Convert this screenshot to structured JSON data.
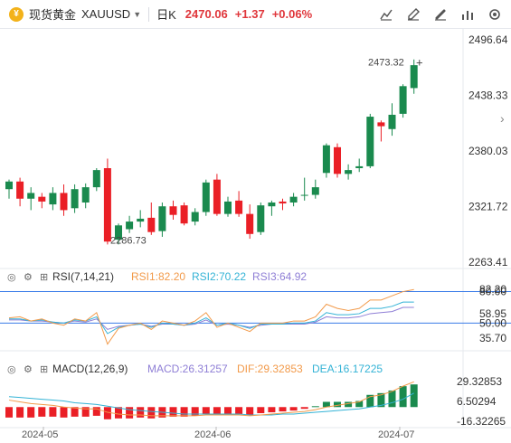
{
  "header": {
    "name": "现货黄金",
    "symbol": "XAUUSD",
    "period": "日K",
    "price": "2470.06",
    "change": "+1.37",
    "change_pct": "+0.06%"
  },
  "price_axis": [
    "2496.64",
    "2438.33",
    "2380.03",
    "2321.72",
    "2263.41"
  ],
  "price_annotations": {
    "high": "2473.32",
    "low": "2286.73"
  },
  "rsi": {
    "title": "RSI(7,14,21)",
    "rsi1": "RSI1:82.20",
    "rsi2": "RSI2:70.22",
    "rsi3": "RSI3:64.92",
    "axis": [
      "80.00",
      "82.20",
      "58.95",
      "50.00",
      "35.70"
    ]
  },
  "macd": {
    "title": "MACD(12,26,9)",
    "macd": "MACD:26.31257",
    "dif": "DIF:29.32853",
    "dea": "DEA:16.17225",
    "axis": [
      "29.32853",
      "6.50294",
      "-16.32265"
    ]
  },
  "date_axis": [
    "2024-05",
    "2024-06",
    "2024-07"
  ],
  "colors": {
    "up": "#1a8a4e",
    "down": "#ea1f26",
    "accent": "#e0363b",
    "rsi1": "#f29a4a",
    "rsi2": "#34b3d6",
    "rsi3": "#8f7fd6",
    "ref": "#3a7be8"
  },
  "icons": [
    "gold-coin-icon",
    "chevron-down-icon",
    "drawing-icon",
    "pencil-icon",
    "brush-icon",
    "indicator-icon",
    "settings-icon",
    "chevron-right-icon"
  ],
  "chart_data": {
    "type": "candlestick",
    "candles": [
      {
        "o": 2340,
        "h": 2350,
        "l": 2330,
        "c": 2348
      },
      {
        "o": 2348,
        "h": 2352,
        "l": 2322,
        "c": 2330
      },
      {
        "o": 2330,
        "h": 2342,
        "l": 2318,
        "c": 2336
      },
      {
        "o": 2332,
        "h": 2336,
        "l": 2320,
        "c": 2327
      },
      {
        "o": 2324,
        "h": 2342,
        "l": 2318,
        "c": 2336
      },
      {
        "o": 2336,
        "h": 2345,
        "l": 2312,
        "c": 2318
      },
      {
        "o": 2320,
        "h": 2345,
        "l": 2315,
        "c": 2340
      },
      {
        "o": 2326,
        "h": 2346,
        "l": 2320,
        "c": 2342
      },
      {
        "o": 2342,
        "h": 2362,
        "l": 2338,
        "c": 2360
      },
      {
        "o": 2362,
        "h": 2372,
        "l": 2282,
        "c": 2285
      },
      {
        "o": 2287,
        "h": 2304,
        "l": 2282,
        "c": 2302
      },
      {
        "o": 2298,
        "h": 2312,
        "l": 2294,
        "c": 2306
      },
      {
        "o": 2306,
        "h": 2318,
        "l": 2300,
        "c": 2309
      },
      {
        "o": 2310,
        "h": 2326,
        "l": 2292,
        "c": 2295
      },
      {
        "o": 2296,
        "h": 2326,
        "l": 2290,
        "c": 2322
      },
      {
        "o": 2322,
        "h": 2328,
        "l": 2308,
        "c": 2313
      },
      {
        "o": 2323,
        "h": 2326,
        "l": 2302,
        "c": 2304
      },
      {
        "o": 2306,
        "h": 2320,
        "l": 2302,
        "c": 2316
      },
      {
        "o": 2316,
        "h": 2350,
        "l": 2312,
        "c": 2347
      },
      {
        "o": 2350,
        "h": 2356,
        "l": 2312,
        "c": 2314
      },
      {
        "o": 2314,
        "h": 2332,
        "l": 2311,
        "c": 2327
      },
      {
        "o": 2328,
        "h": 2338,
        "l": 2311,
        "c": 2314
      },
      {
        "o": 2314,
        "h": 2324,
        "l": 2288,
        "c": 2293
      },
      {
        "o": 2295,
        "h": 2326,
        "l": 2292,
        "c": 2323
      },
      {
        "o": 2322,
        "h": 2328,
        "l": 2312,
        "c": 2326
      },
      {
        "o": 2327,
        "h": 2330,
        "l": 2318,
        "c": 2325
      },
      {
        "o": 2326,
        "h": 2336,
        "l": 2322,
        "c": 2332
      },
      {
        "o": 2334,
        "h": 2352,
        "l": 2328,
        "c": 2334
      },
      {
        "o": 2334,
        "h": 2350,
        "l": 2330,
        "c": 2342
      },
      {
        "o": 2357,
        "h": 2388,
        "l": 2352,
        "c": 2386
      },
      {
        "o": 2384,
        "h": 2388,
        "l": 2352,
        "c": 2356
      },
      {
        "o": 2356,
        "h": 2366,
        "l": 2350,
        "c": 2360
      },
      {
        "o": 2362,
        "h": 2372,
        "l": 2358,
        "c": 2364
      },
      {
        "o": 2364,
        "h": 2419,
        "l": 2362,
        "c": 2416
      },
      {
        "o": 2410,
        "h": 2412,
        "l": 2390,
        "c": 2406
      },
      {
        "o": 2403,
        "h": 2430,
        "l": 2396,
        "c": 2418
      },
      {
        "o": 2419,
        "h": 2450,
        "l": 2415,
        "c": 2448
      },
      {
        "o": 2446,
        "h": 2476,
        "l": 2440,
        "c": 2470
      }
    ],
    "rsi1": [
      55,
      56,
      52,
      54,
      50,
      48,
      54,
      52,
      60,
      30,
      45,
      48,
      50,
      44,
      52,
      50,
      48,
      52,
      60,
      46,
      50,
      46,
      42,
      50,
      50,
      50,
      52,
      52,
      56,
      68,
      64,
      62,
      64,
      72,
      72,
      76,
      80,
      82
    ],
    "rsi2": [
      54,
      54,
      52,
      53,
      51,
      50,
      53,
      52,
      56,
      40,
      46,
      48,
      49,
      46,
      50,
      49,
      48,
      50,
      55,
      48,
      50,
      48,
      45,
      49,
      49,
      49,
      50,
      50,
      52,
      60,
      58,
      58,
      59,
      64,
      64,
      66,
      70,
      70
    ],
    "rsi3": [
      53,
      53,
      52,
      52,
      51,
      50,
      52,
      51,
      54,
      44,
      47,
      48,
      49,
      47,
      49,
      49,
      48,
      49,
      53,
      48,
      49,
      48,
      46,
      48,
      49,
      49,
      49,
      49,
      51,
      56,
      55,
      55,
      56,
      59,
      60,
      61,
      65,
      65
    ],
    "macd_hist": [
      -12,
      -12,
      -12,
      -11,
      -11,
      -12,
      -11,
      -11,
      -10,
      -14,
      -13,
      -13,
      -12,
      -13,
      -12,
      -11,
      -11,
      -10,
      -8,
      -9,
      -8,
      -8,
      -9,
      -7,
      -6,
      -5,
      -4,
      -2,
      1,
      6,
      6,
      6,
      7,
      14,
      16,
      19,
      24,
      26
    ],
    "dif": [
      8,
      6,
      4,
      3,
      2,
      0,
      -1,
      -2,
      -2,
      -6,
      -8,
      -9,
      -9,
      -10,
      -10,
      -10,
      -10,
      -10,
      -9,
      -9,
      -9,
      -9,
      -10,
      -9,
      -8,
      -7,
      -6,
      -5,
      -3,
      0,
      2,
      4,
      6,
      12,
      14,
      18,
      24,
      29
    ],
    "dea": [
      12,
      11,
      10,
      9,
      8,
      7,
      5,
      4,
      3,
      1,
      -1,
      -3,
      -4,
      -5,
      -6,
      -7,
      -8,
      -8,
      -8,
      -8,
      -8,
      -8,
      -9,
      -9,
      -9,
      -8,
      -8,
      -7,
      -6,
      -5,
      -4,
      -3,
      -2,
      0,
      2,
      5,
      9,
      16
    ],
    "y_range_price": [
      2263.41,
      2496.64
    ],
    "rsi_range": [
      35.7,
      82.2
    ]
  }
}
